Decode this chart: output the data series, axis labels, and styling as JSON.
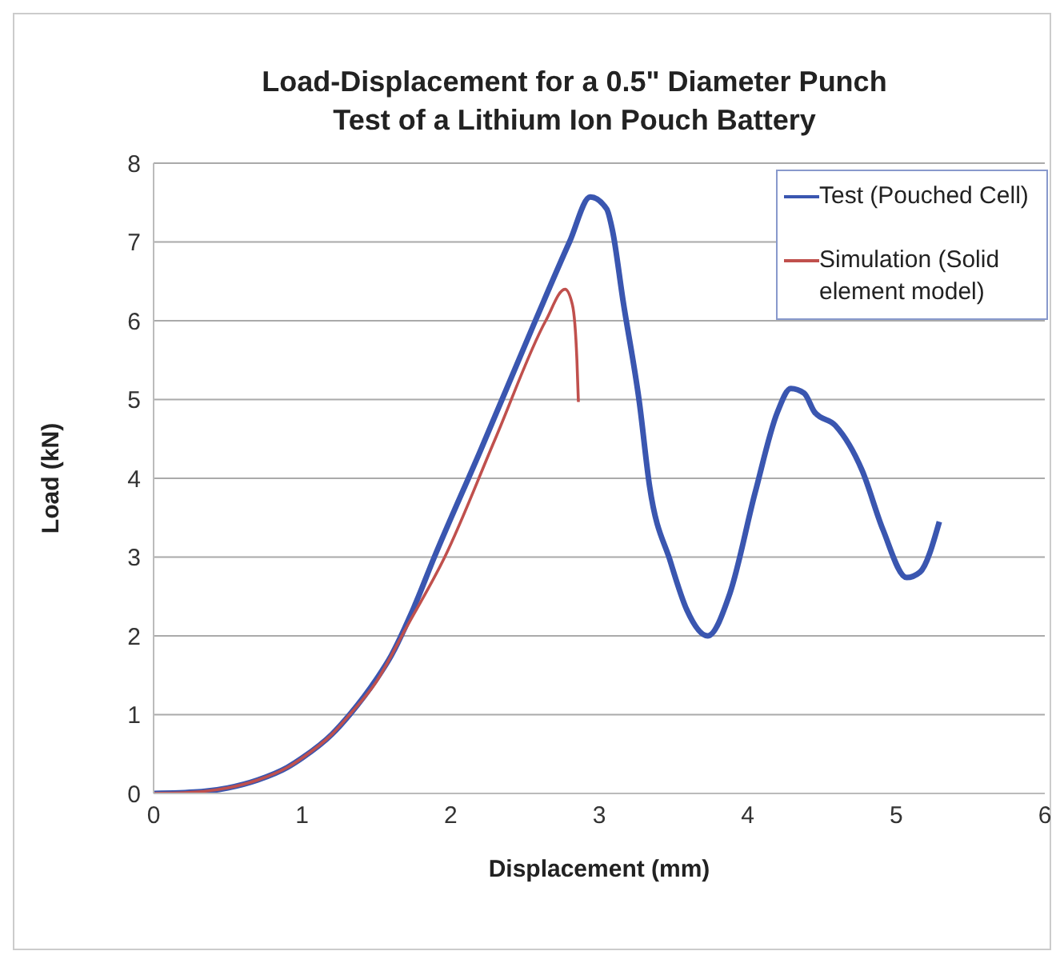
{
  "chart_data": {
    "type": "line",
    "title": "Load-Displacement for a 0.5\" Diameter Punch Test of a Lithium Ion Pouch Battery",
    "xlabel": "Displacement (mm)",
    "ylabel": "Load (kN)",
    "xlim": [
      0,
      6
    ],
    "xticks": [
      0,
      1,
      2,
      3,
      4,
      5,
      6
    ],
    "ylim": [
      0,
      8
    ],
    "yticks": [
      0,
      1,
      2,
      3,
      4,
      5,
      6,
      7,
      8
    ],
    "grid": "y",
    "legend": "top right",
    "marker": "none",
    "line_style": "solid",
    "series": [
      {
        "name": "Test (Pouched Cell)",
        "color": "#3a56b0",
        "x": [
          0,
          0.3,
          0.5,
          0.7,
          0.9,
          1.0,
          1.2,
          1.32,
          1.5,
          1.6,
          1.75,
          1.89,
          2.2,
          2.57,
          2.8,
          2.94,
          3.05,
          3.09,
          3.16,
          3.27,
          3.34,
          3.48,
          3.59,
          3.73,
          3.88,
          4.05,
          4.2,
          4.29,
          4.38,
          4.45,
          4.59,
          4.77,
          4.91,
          5.07,
          5.16,
          5.29
        ],
        "values": [
          0,
          0.02,
          0.07,
          0.17,
          0.33,
          0.45,
          0.75,
          1.0,
          1.45,
          1.75,
          2.35,
          3.0,
          4.35,
          6.0,
          7.0,
          7.57,
          7.42,
          7.14,
          6.26,
          4.97,
          3.89,
          2.94,
          2.33,
          2.0,
          2.54,
          3.82,
          4.84,
          5.14,
          5.08,
          4.84,
          4.67,
          4.1,
          3.35,
          2.74,
          2.81,
          3.45
        ]
      },
      {
        "name": "Simulation (Solid element model)",
        "color": "#c0504d",
        "x": [
          0,
          0.3,
          0.5,
          0.7,
          0.9,
          1.0,
          1.2,
          1.32,
          1.5,
          1.7,
          1.96,
          2.3,
          2.64,
          2.77,
          2.82,
          2.85,
          2.86
        ],
        "values": [
          0,
          0.02,
          0.07,
          0.17,
          0.33,
          0.45,
          0.75,
          1.0,
          1.42,
          2.1,
          3.0,
          4.5,
          6.0,
          6.4,
          6.2,
          5.5,
          4.97
        ]
      }
    ]
  }
}
